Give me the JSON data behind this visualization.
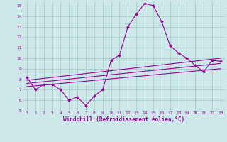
{
  "bg_color": "#cce8e8",
  "grid_color": "#aacccc",
  "line_color": "#990099",
  "xlabel": "Windchill (Refroidissement éolien,°C)",
  "xlim": [
    -0.5,
    23.5
  ],
  "ylim": [
    5,
    15.4
  ],
  "xticks": [
    0,
    1,
    2,
    3,
    4,
    5,
    6,
    7,
    8,
    9,
    10,
    11,
    12,
    13,
    14,
    15,
    16,
    17,
    18,
    19,
    20,
    21,
    22,
    23
  ],
  "yticks": [
    5,
    6,
    7,
    8,
    9,
    10,
    11,
    12,
    13,
    14,
    15
  ],
  "main_x": [
    0,
    1,
    2,
    3,
    4,
    5,
    6,
    7,
    8,
    9,
    10,
    11,
    12,
    13,
    14,
    15,
    16,
    17,
    18,
    19,
    20,
    21,
    22,
    23
  ],
  "main_y": [
    8.2,
    7.0,
    7.5,
    7.5,
    7.0,
    6.0,
    6.3,
    5.5,
    6.4,
    7.0,
    9.8,
    10.3,
    13.0,
    14.2,
    15.2,
    15.0,
    13.5,
    11.2,
    10.5,
    10.0,
    9.3,
    8.7,
    9.8,
    9.7
  ],
  "line1_x": [
    0,
    23
  ],
  "line1_y": [
    7.9,
    10.0
  ],
  "line2_x": [
    0,
    23
  ],
  "line2_y": [
    7.6,
    9.5
  ],
  "line3_x": [
    0,
    23
  ],
  "line3_y": [
    7.3,
    9.0
  ]
}
